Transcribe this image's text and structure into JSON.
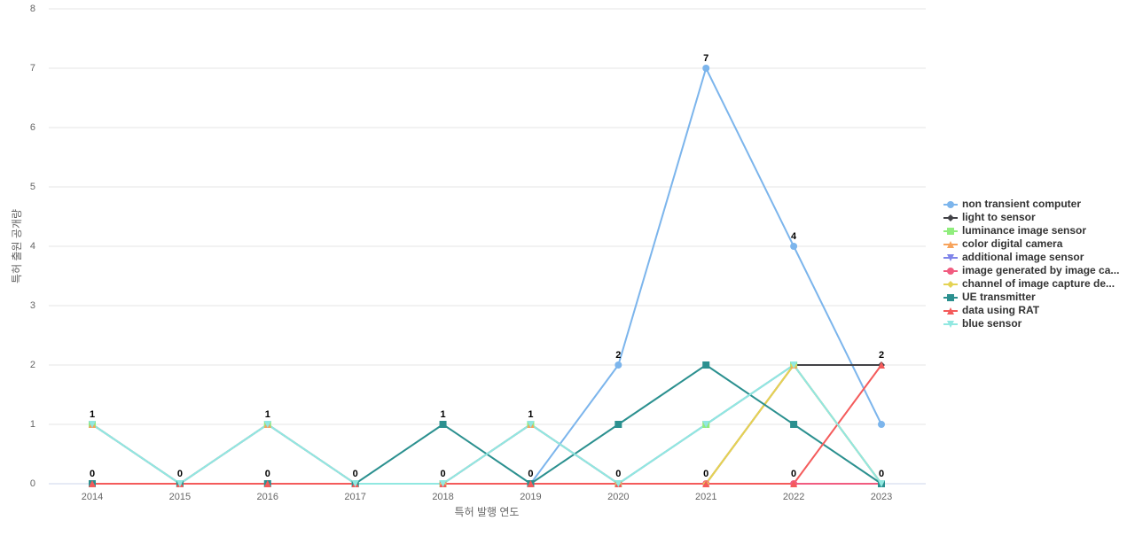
{
  "chart_data": {
    "type": "line",
    "x_label": "특허 발행 연도",
    "y_label": "특허 출원 공개량",
    "categories": [
      "2014",
      "2015",
      "2016",
      "2017",
      "2018",
      "2019",
      "2020",
      "2021",
      "2022",
      "2023"
    ],
    "ylim": [
      0,
      8
    ],
    "yticks": [
      0,
      1,
      2,
      3,
      4,
      5,
      6,
      7,
      8
    ],
    "grid": true,
    "series": [
      {
        "name": "non transient computer",
        "color": "#7cb5ec",
        "values": [
          0,
          0,
          0,
          0,
          0,
          0,
          2,
          7,
          4,
          1
        ]
      },
      {
        "name": "light to sensor",
        "color": "#434348",
        "values": [
          0,
          0,
          0,
          0,
          0,
          0,
          0,
          0,
          2,
          2
        ]
      },
      {
        "name": "luminance image sensor",
        "color": "#90ed7d",
        "values": [
          1,
          0,
          1,
          0,
          0,
          1,
          0,
          1,
          2,
          0
        ]
      },
      {
        "name": "color digital camera",
        "color": "#f7a35c",
        "values": [
          1,
          0,
          1,
          0,
          0,
          1,
          0,
          0,
          2,
          0
        ]
      },
      {
        "name": "additional image sensor",
        "color": "#8085e9",
        "values": [
          1,
          0,
          1,
          0,
          0,
          1,
          0,
          1,
          2,
          0
        ]
      },
      {
        "name": "image generated by image ca...",
        "color": "#f15c80",
        "values": [
          0,
          0,
          0,
          0,
          0,
          0,
          0,
          0,
          0,
          0
        ]
      },
      {
        "name": "channel of image capture de...",
        "color": "#e4d354",
        "values": [
          0,
          0,
          0,
          0,
          0,
          0,
          0,
          0,
          2,
          0
        ]
      },
      {
        "name": "UE transmitter",
        "color": "#2b908f",
        "values": [
          0,
          0,
          0,
          0,
          1,
          0,
          1,
          2,
          1,
          0
        ]
      },
      {
        "name": "data using RAT",
        "color": "#f45b5b",
        "values": [
          0,
          0,
          0,
          0,
          0,
          0,
          0,
          0,
          0,
          2
        ]
      },
      {
        "name": "blue sensor",
        "color": "#91e8e1",
        "values": [
          1,
          0,
          1,
          0,
          0,
          1,
          0,
          1,
          2,
          0
        ]
      }
    ]
  }
}
